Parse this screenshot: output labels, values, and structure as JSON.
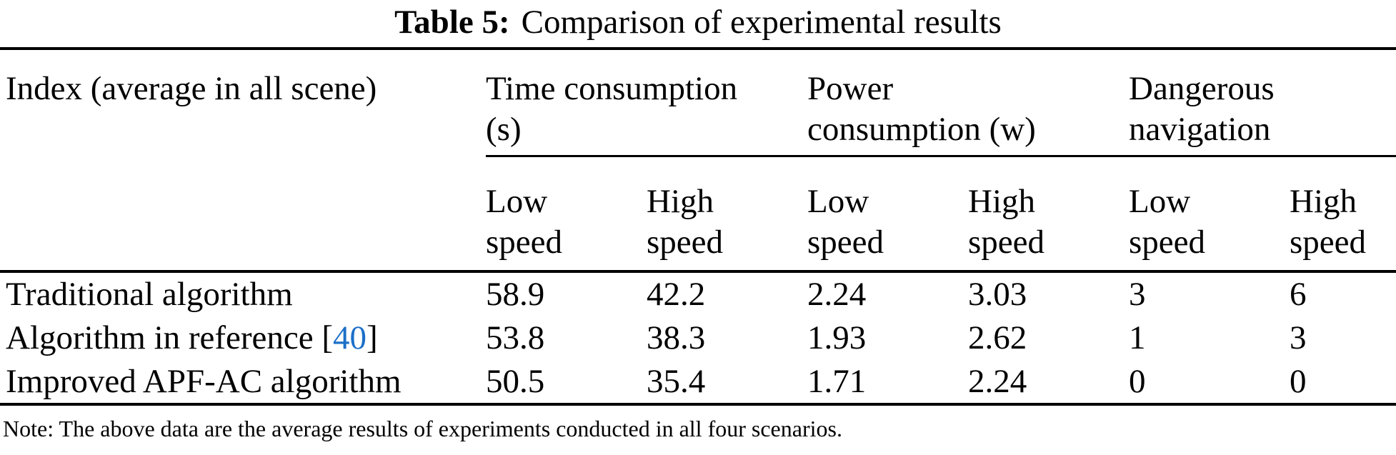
{
  "caption": {
    "label": "Table 5:",
    "text": "Comparison of experimental results"
  },
  "colors": {
    "text": "#000000",
    "background": "#ffffff",
    "rule": "#000000",
    "citation": "#1b6fc8"
  },
  "table": {
    "corner_header": "Index (average in all scene)",
    "groups": [
      {
        "label": "Time consumption\n(s)"
      },
      {
        "label": "Power\nconsumption (w)"
      },
      {
        "label": "Dangerous\nnavigation"
      }
    ],
    "subheaders": [
      "Low\nspeed",
      "High\nspeed",
      "Low\nspeed",
      "High\nspeed",
      "Low\nspeed",
      "High\nspeed"
    ],
    "rows": [
      {
        "label": "Traditional algorithm",
        "values": [
          "58.9",
          "42.2",
          "2.24",
          "3.03",
          "3",
          "6"
        ]
      },
      {
        "label": "Algorithm in reference [",
        "ref": "40",
        "label_suffix": "]",
        "values": [
          "53.8",
          "38.3",
          "1.93",
          "2.62",
          "1",
          "3"
        ]
      },
      {
        "label": "Improved APF-AC algorithm",
        "values": [
          "50.5",
          "35.4",
          "1.71",
          "2.24",
          "0",
          "0"
        ]
      }
    ]
  },
  "note": "Note: The above data are the average results of experiments conducted in all four scenarios.",
  "chart_data": {
    "type": "table",
    "title": "Table 5: Comparison of experimental results",
    "row_header": "Index (average in all scene)",
    "column_groups": [
      "Time consumption (s)",
      "Power consumption (w)",
      "Dangerous navigation"
    ],
    "columns": [
      "Low speed",
      "High speed",
      "Low speed",
      "High speed",
      "Low speed",
      "High speed"
    ],
    "rows": [
      {
        "name": "Traditional algorithm",
        "values": [
          58.9,
          42.2,
          2.24,
          3.03,
          3,
          6
        ]
      },
      {
        "name": "Algorithm in reference [40]",
        "values": [
          53.8,
          38.3,
          1.93,
          2.62,
          1,
          3
        ]
      },
      {
        "name": "Improved APF-AC algorithm",
        "values": [
          50.5,
          35.4,
          1.71,
          2.24,
          0,
          0
        ]
      }
    ],
    "note": "Note: The above data are the average results of experiments conducted in all four scenarios."
  }
}
